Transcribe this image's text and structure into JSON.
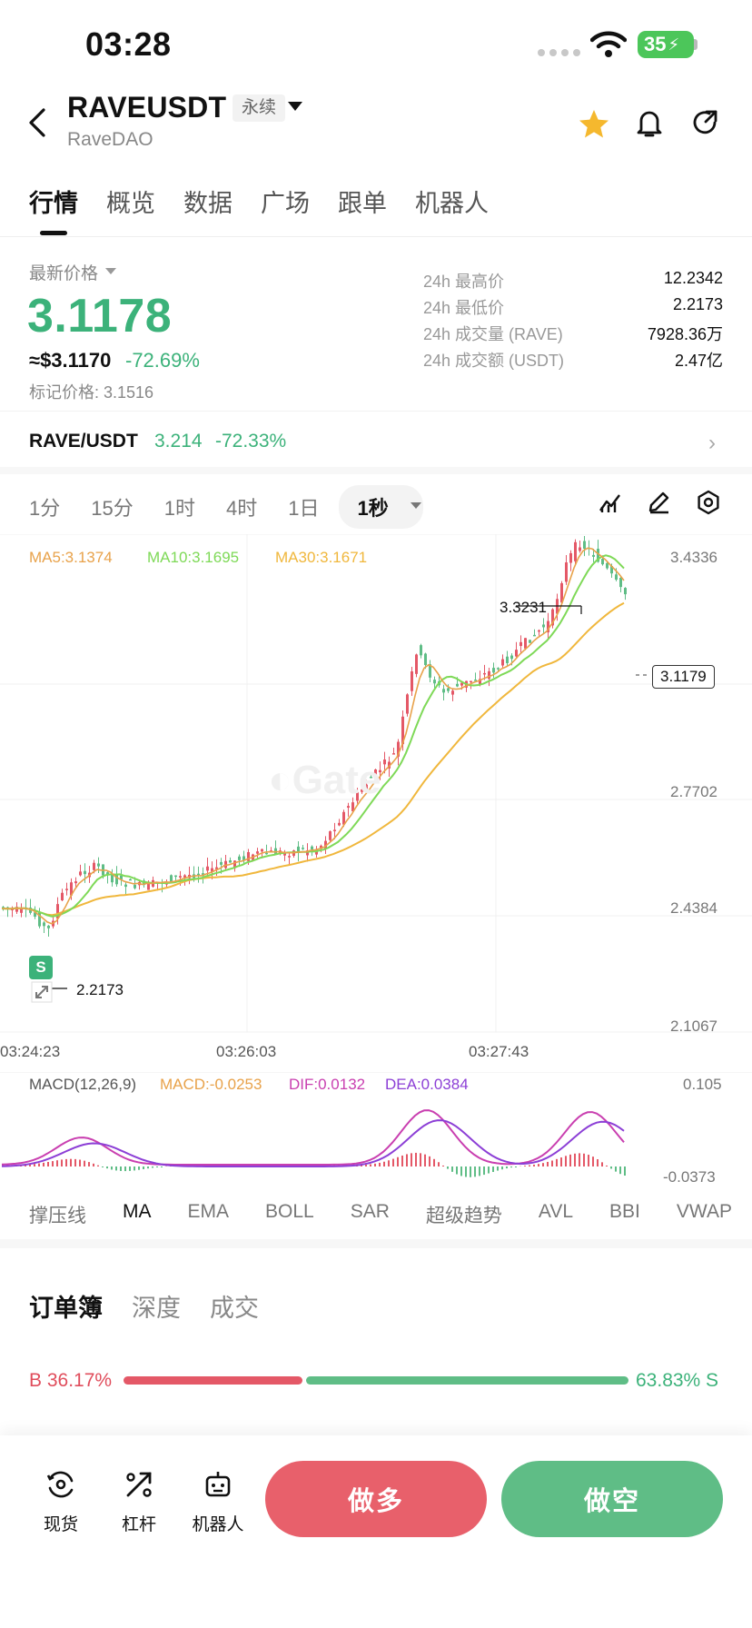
{
  "status": {
    "time": "03:28",
    "battery": "35"
  },
  "header": {
    "symbol": "RAVEUSDT",
    "contract_type": "永续",
    "name": "RaveDAO"
  },
  "tabs": [
    "行情",
    "概览",
    "数据",
    "广场",
    "跟单",
    "机器人"
  ],
  "price": {
    "label": "最新价格",
    "last": "3.1178",
    "usd": "≈$3.1170",
    "change": "-72.69%",
    "mark": "标记价格: 3.1516"
  },
  "stats": [
    {
      "label": "24h 最高价",
      "value": "12.2342"
    },
    {
      "label": "24h 最低价",
      "value": "2.2173"
    },
    {
      "label": "24h 成交量 (RAVE)",
      "value": "7928.36万"
    },
    {
      "label": "24h 成交额 (USDT)",
      "value": "2.47亿"
    }
  ],
  "spot_pair": {
    "label": "RAVE/USDT",
    "price": "3.214",
    "change": "-72.33%"
  },
  "intervals": [
    "1分",
    "15分",
    "1时",
    "4时",
    "1日",
    "1秒"
  ],
  "chart": {
    "ma_legend": {
      "ma5": "MA5:3.1374",
      "ma10": "MA10:3.1695",
      "ma30": "MA30:3.1671"
    },
    "y_labels": [
      "3.4336",
      "2.7702",
      "2.4384",
      "2.1067"
    ],
    "high_label": "3.3231",
    "low_label": "2.2173",
    "current_price": "3.1179",
    "time_labels": [
      "03:24:23",
      "03:26:03",
      "03:27:43"
    ],
    "macd_legend": {
      "params": "MACD(12,26,9)",
      "macd": "MACD:-0.0253",
      "dif": "DIF:0.0132",
      "dea": "DEA:0.0384"
    },
    "macd_y_labels": [
      "0.105",
      "-0.0373"
    ],
    "colors": {
      "up": "#e45867",
      "down": "#5fbd86",
      "ma5": "#e8a24a",
      "ma10": "#7ed957",
      "ma30": "#f0b73c",
      "dif": "#c93fb0",
      "dea": "#8c3fd6"
    },
    "marker": "S"
  },
  "indicator_tabs": [
    "撑压线",
    "MA",
    "EMA",
    "BOLL",
    "SAR",
    "超级趋势",
    "AVL",
    "BBI",
    "VWAP"
  ],
  "orderbook": {
    "tabs": [
      "订单簿",
      "深度",
      "成交"
    ],
    "buy_ratio": "B 36.17%",
    "sell_ratio": "63.83% S",
    "buy_pct": 36.17
  },
  "bottom_nav": [
    {
      "label": "现货",
      "icon": "spot-icon"
    },
    {
      "label": "杠杆",
      "icon": "leverage-icon"
    },
    {
      "label": "机器人",
      "icon": "robot-icon"
    }
  ],
  "actions": {
    "long": "做多",
    "short": "做空"
  }
}
